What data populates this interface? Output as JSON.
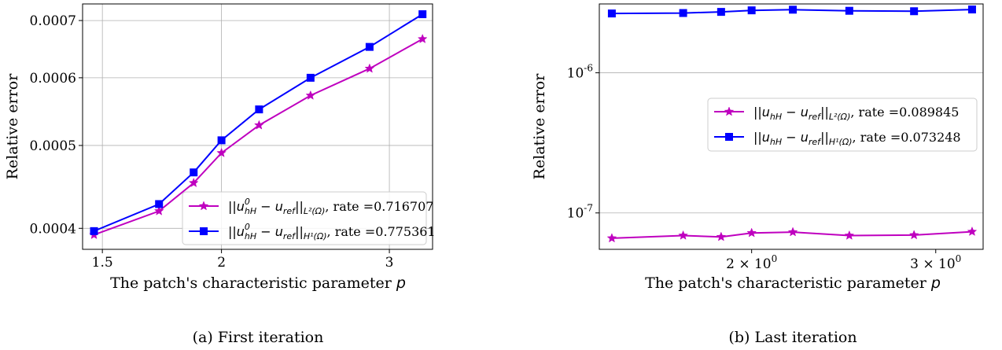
{
  "chart_data": [
    {
      "type": "line",
      "caption": "(a) First iteration",
      "xlabel": "The patch's characteristic parameter p",
      "ylabel": "Relative error",
      "xscale": "log",
      "yscale": "log",
      "xlim": [
        1.43,
        3.33
      ],
      "ylim": [
        0.000378,
        0.000732
      ],
      "xticks": [
        1.5,
        2,
        3
      ],
      "xtick_labels": [
        "1.5",
        "2",
        "3"
      ],
      "yticks": [
        0.0004,
        0.0005,
        0.0006,
        0.0007
      ],
      "ytick_labels": [
        "0.0004",
        "0.0005",
        "0.0006",
        "0.0007"
      ],
      "grid": true,
      "legend_position": "lower-right",
      "series": [
        {
          "name": "||u0hH − uref||L²(Ω), rate =0.716707",
          "color": "#bf00bf",
          "marker": "star",
          "x": [
            1.47,
            1.72,
            1.87,
            2.0,
            2.19,
            2.48,
            2.86,
            3.25
          ],
          "y": [
            0.000393,
            0.000419,
            0.000452,
            0.00049,
            0.000528,
            0.000572,
            0.000615,
            0.000666
          ]
        },
        {
          "name": "||u0hH − uref||H¹(Ω), rate =0.775361",
          "color": "#0000ff",
          "marker": "square",
          "x": [
            1.47,
            1.72,
            1.87,
            2.0,
            2.19,
            2.48,
            2.86,
            3.25
          ],
          "y": [
            0.000397,
            0.000427,
            0.000465,
            0.000507,
            0.000551,
            0.0006,
            0.000652,
            0.000712
          ]
        }
      ]
    },
    {
      "type": "line",
      "caption": "(b) Last iteration",
      "xlabel": "The patch's characteristic parameter p",
      "ylabel": "Relative error",
      "xscale": "log",
      "yscale": "log",
      "xlim": [
        1.43,
        3.33
      ],
      "ylim": [
        5.5e-08,
        3.1e-06
      ],
      "xticks": [
        2,
        3
      ],
      "xtick_labels": [
        "2 × 10^0",
        "3 × 10^0"
      ],
      "yticks": [
        1e-07,
        1e-06
      ],
      "ytick_labels": [
        "10^-7",
        "10^-6"
      ],
      "grid": true,
      "legend_position": "center-right",
      "series": [
        {
          "name": "||uhH − uref||L²(Ω), rate =0.089845",
          "color": "#bf00bf",
          "marker": "star",
          "x": [
            1.47,
            1.72,
            1.87,
            2.0,
            2.19,
            2.48,
            2.86,
            3.25
          ],
          "y": [
            6.6e-08,
            6.9e-08,
            6.75e-08,
            7.2e-08,
            7.3e-08,
            6.9e-08,
            6.95e-08,
            7.35e-08
          ]
        },
        {
          "name": "||uhH − uref||H¹(Ω), rate =0.073248",
          "color": "#0000ff",
          "marker": "square",
          "x": [
            1.47,
            1.72,
            1.87,
            2.0,
            2.19,
            2.48,
            2.86,
            3.25
          ],
          "y": [
            2.65e-06,
            2.67e-06,
            2.72e-06,
            2.79e-06,
            2.82e-06,
            2.77e-06,
            2.75e-06,
            2.83e-06
          ]
        }
      ]
    }
  ],
  "legends": {
    "a": [
      {
        "pre": "||u",
        "sup": "0",
        "sub": "hH",
        "mid": " − u",
        "sub2": "ref",
        "post": "||",
        "norm": "L²(Ω)",
        "rate": ", rate =0.716707"
      },
      {
        "pre": "||u",
        "sup": "0",
        "sub": "hH",
        "mid": " − u",
        "sub2": "ref",
        "post": "||",
        "norm": "H¹(Ω)",
        "rate": ",  rate =0.775361"
      }
    ],
    "b": [
      {
        "pre": "||u",
        "sup": "",
        "sub": "hH",
        "mid": " − u",
        "sub2": "ref",
        "post": "||",
        "norm": "L²(Ω)",
        "rate": ", rate =0.089845"
      },
      {
        "pre": "||u",
        "sup": "",
        "sub": "hH",
        "mid": " − u",
        "sub2": "ref",
        "post": "||",
        "norm": "H¹(Ω)",
        "rate": ",  rate =0.073248"
      }
    ]
  },
  "xlabel_text": "The patch's characteristic parameter ",
  "xlabel_var": "p"
}
